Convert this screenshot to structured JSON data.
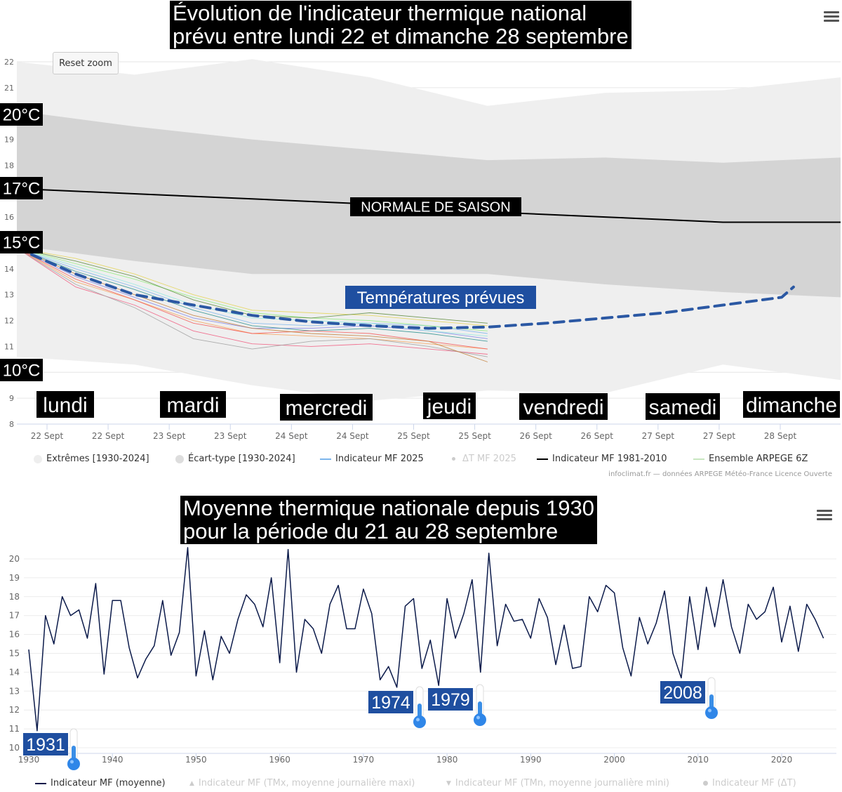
{
  "chart1": {
    "title_line1": "Évolution de l'indicateur thermique national",
    "title_line2": "prévu entre lundi 22 et dimanche 28 septembre",
    "reset_label": "Reset zoom",
    "credit": "infoclimat.fr — données ARPEGE Météo-France Licence Ouverte",
    "menu_icon": "hamburger-menu-icon",
    "legend": [
      {
        "label": "Extrêmes [1930-2024]",
        "color": "#eeeeee",
        "symbol": "circle"
      },
      {
        "label": "Écart-type [1930-2024]",
        "color": "#dddddd",
        "symbol": "circle"
      },
      {
        "label": "Indicateur MF 2025",
        "color": "#7cb5ec",
        "symbol": "line"
      },
      {
        "label": "ΔT MF 2025",
        "color": "#cccccc",
        "symbol": "dot",
        "disabled": true
      },
      {
        "label": "Indicateur MF 1981-2010",
        "color": "#000000",
        "symbol": "line"
      },
      {
        "label": "Ensemble ARPEGE 6Z",
        "color": "#c8e6c0",
        "symbol": "line"
      }
    ],
    "annotations": {
      "normale": "NORMALE DE SAISON",
      "prevues": "Températures prévues",
      "t20": "20°C",
      "t17": "17°C",
      "t15": "15°C",
      "t10": "10°C"
    },
    "day_labels": [
      "lundi",
      "mardi",
      "mercredi",
      "jeudi",
      "vendredi",
      "samedi",
      "dimanche"
    ],
    "colors": {
      "extremes": "#efefef",
      "ecart": "#d4d4d4",
      "normale": "#000000",
      "forecast": "#2b58a3",
      "ensemble": [
        "#7cb5ec",
        "#f7a35c",
        "#90ed7d",
        "#8085e9",
        "#f15c80",
        "#e4d354",
        "#2b908f",
        "#f45b5b",
        "#91e8e1",
        "#a0a0a0",
        "#5c8a3a",
        "#c47f3a"
      ]
    },
    "chart_data": {
      "type": "area",
      "x_ticks": [
        "22 Sept",
        "22 Sept",
        "23 Sept",
        "23 Sept",
        "24 Sept",
        "24 Sept",
        "25 Sept",
        "25 Sept",
        "26 Sept",
        "26 Sept",
        "27 Sept",
        "27 Sept",
        "28 Sept"
      ],
      "ylim": [
        8,
        22.3
      ],
      "y_ticks": [
        8,
        9,
        10,
        11,
        12,
        13,
        14,
        15,
        16,
        17,
        18,
        19,
        20,
        21,
        22
      ],
      "x_range": [
        0,
        13
      ],
      "series": [
        {
          "name": "Extrêmes [1930-2024]",
          "type": "arearange",
          "x": [
            0,
            2,
            4,
            6,
            8,
            10,
            12,
            14
          ],
          "low": [
            10.6,
            10.3,
            9.5,
            8.9,
            9.3,
            9.2,
            10.3,
            9.7
          ],
          "high": [
            22.0,
            21.5,
            22.1,
            21.4,
            20.3,
            20.8,
            20.9,
            21.4
          ]
        },
        {
          "name": "Écart-type [1930-2024]",
          "type": "arearange",
          "x": [
            0,
            2,
            4,
            6,
            8,
            10,
            12,
            14
          ],
          "low": [
            14.9,
            14.3,
            13.8,
            13.8,
            13.8,
            13.4,
            13.1,
            12.9
          ],
          "high": [
            20.1,
            19.5,
            19.0,
            18.6,
            18.2,
            18.3,
            18.1,
            18.3
          ]
        },
        {
          "name": "Indicateur MF 1981-2010",
          "type": "line",
          "x": [
            0,
            2,
            4,
            6,
            8,
            10,
            12,
            14
          ],
          "y": [
            17.1,
            16.9,
            16.7,
            16.5,
            16.2,
            16.0,
            15.8,
            15.8
          ]
        },
        {
          "name": "Indicateur MF 2025",
          "type": "line",
          "dashed": true,
          "x": [
            0,
            1,
            2,
            3,
            4,
            5,
            6,
            7,
            8,
            9,
            10,
            11,
            12,
            13,
            14
          ],
          "y": [
            14.8,
            13.8,
            13.0,
            12.6,
            12.2,
            11.95,
            11.8,
            11.7,
            11.75,
            11.9,
            12.1,
            12.3,
            12.6,
            12.9,
            13.3
          ]
        }
      ],
      "ensemble": {
        "name": "Ensemble ARPEGE 6Z",
        "x": [
          0,
          1,
          2,
          3,
          4,
          5,
          6,
          7,
          8
        ],
        "members": [
          [
            14.8,
            14.0,
            13.3,
            12.5,
            11.9,
            11.8,
            11.9,
            11.8,
            11.5
          ],
          [
            14.8,
            13.5,
            12.8,
            12.0,
            11.5,
            11.4,
            11.3,
            11.1,
            10.9
          ],
          [
            14.8,
            14.2,
            13.6,
            12.9,
            12.3,
            12.1,
            12.0,
            11.8,
            11.6
          ],
          [
            14.8,
            13.7,
            12.9,
            12.1,
            11.7,
            11.7,
            11.8,
            11.6,
            11.3
          ],
          [
            14.8,
            13.3,
            12.6,
            11.6,
            11.1,
            11.0,
            11.1,
            10.9,
            10.7
          ],
          [
            14.8,
            14.4,
            13.8,
            13.0,
            12.4,
            12.3,
            12.2,
            12.0,
            11.8
          ],
          [
            14.8,
            13.9,
            13.2,
            12.4,
            11.8,
            11.6,
            11.7,
            11.5,
            11.2
          ],
          [
            14.8,
            13.6,
            12.8,
            11.9,
            11.5,
            11.6,
            11.5,
            11.2,
            10.9
          ],
          [
            14.8,
            14.1,
            13.4,
            12.6,
            12.1,
            12.0,
            11.9,
            11.6,
            11.4
          ],
          [
            14.8,
            13.4,
            12.5,
            11.3,
            10.9,
            11.2,
            11.3,
            11.0,
            10.6
          ],
          [
            14.8,
            14.3,
            13.7,
            12.8,
            12.2,
            12.1,
            12.3,
            12.1,
            11.9
          ],
          [
            14.8,
            13.8,
            13.0,
            12.2,
            11.7,
            11.5,
            11.4,
            11.2,
            10.4
          ]
        ]
      }
    }
  },
  "chart2": {
    "title_line1": "Moyenne thermique nationale depuis 1930",
    "title_line2": "pour la période du 21 au 28 septembre",
    "menu_icon": "hamburger-menu-icon",
    "line_color": "#0b1a4a",
    "legend": [
      {
        "label": "Indicateur MF (moyenne)",
        "color": "#0b1a4a",
        "symbol": "line"
      },
      {
        "label": "Indicateur MF (TMx, moyenne journalière maxi)",
        "color": "#cccccc",
        "symbol": "triangle-up",
        "disabled": true
      },
      {
        "label": "Indicateur MF (TMn, moyenne journalière mini)",
        "color": "#cccccc",
        "symbol": "triangle-down",
        "disabled": true
      },
      {
        "label": "Indicateur MF (ΔT)",
        "color": "#cccccc",
        "symbol": "dot",
        "disabled": true
      }
    ],
    "cold_years": [
      {
        "label": "1931",
        "year": 1931
      },
      {
        "label": "1974",
        "year": 1974
      },
      {
        "label": "1979",
        "year": 1979
      },
      {
        "label": "2008",
        "year": 2008
      }
    ],
    "chart_data": {
      "type": "line",
      "xlabel": "",
      "ylabel": "",
      "xlim": [
        1930,
        2026
      ],
      "x_ticks": [
        1930,
        1940,
        1950,
        1960,
        1970,
        1980,
        1990,
        2000,
        2010,
        2020
      ],
      "ylim": [
        10,
        20.5
      ],
      "y_ticks": [
        10,
        11,
        12,
        13,
        14,
        15,
        16,
        17,
        18,
        19,
        20
      ],
      "series": [
        {
          "name": "Indicateur MF (moyenne)",
          "x": [
            1930,
            1931,
            1932,
            1933,
            1934,
            1935,
            1936,
            1937,
            1938,
            1939,
            1940,
            1941,
            1942,
            1943,
            1944,
            1945,
            1946,
            1947,
            1948,
            1949,
            1950,
            1951,
            1952,
            1953,
            1954,
            1955,
            1956,
            1957,
            1958,
            1959,
            1960,
            1961,
            1962,
            1963,
            1964,
            1965,
            1966,
            1967,
            1968,
            1969,
            1970,
            1971,
            1972,
            1973,
            1974,
            1975,
            1976,
            1977,
            1978,
            1979,
            1980,
            1981,
            1982,
            1983,
            1984,
            1985,
            1986,
            1987,
            1988,
            1989,
            1990,
            1991,
            1992,
            1993,
            1994,
            1995,
            1996,
            1997,
            1998,
            1999,
            2000,
            2001,
            2002,
            2003,
            2004,
            2005,
            2006,
            2007,
            2008,
            2009,
            2010,
            2011,
            2012,
            2013,
            2014,
            2015,
            2016,
            2017,
            2018,
            2019,
            2020,
            2021,
            2022,
            2023,
            2024,
            2025
          ],
          "y": [
            15.2,
            10.9,
            17.0,
            15.5,
            18.0,
            17.0,
            17.3,
            15.8,
            18.7,
            13.9,
            17.8,
            17.8,
            15.3,
            13.7,
            14.7,
            15.4,
            17.8,
            14.9,
            16.1,
            20.6,
            13.8,
            16.2,
            13.6,
            15.9,
            15.0,
            16.8,
            18.1,
            17.6,
            16.4,
            19.0,
            14.5,
            20.5,
            14.0,
            16.8,
            16.3,
            15.0,
            17.6,
            18.6,
            16.3,
            16.3,
            18.4,
            17.1,
            13.6,
            14.3,
            13.2,
            17.5,
            17.9,
            14.2,
            15.7,
            13.3,
            17.9,
            15.8,
            17.1,
            18.9,
            14.0,
            20.3,
            15.4,
            17.6,
            16.7,
            16.8,
            15.8,
            17.9,
            16.9,
            14.4,
            16.5,
            14.2,
            14.3,
            18.0,
            17.2,
            18.6,
            18.2,
            15.3,
            13.8,
            16.9,
            15.5,
            16.6,
            18.3,
            15.0,
            13.7,
            18.0,
            15.2,
            18.5,
            16.4,
            18.9,
            16.4,
            15.0,
            17.6,
            16.8,
            17.2,
            18.5,
            15.6,
            17.5,
            15.1,
            17.6,
            16.8,
            15.8
          ]
        }
      ]
    }
  }
}
